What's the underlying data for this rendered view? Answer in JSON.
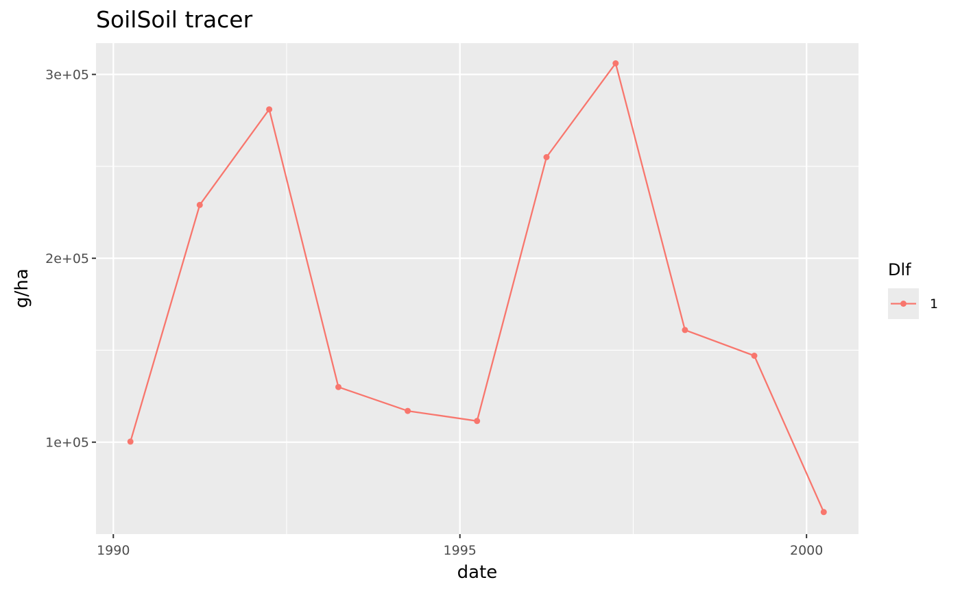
{
  "chart_data": {
    "type": "line",
    "title": "SoilSoil tracer",
    "xlabel": "date",
    "ylabel": "g/ha",
    "x_tick_labels": [
      "1990",
      "1995",
      "2000"
    ],
    "y_tick_labels": [
      "1e+05",
      "2e+05",
      "3e+05"
    ],
    "xlim": [
      1989.75,
      2000.75
    ],
    "ylim": [
      50000,
      317000
    ],
    "x_ticks": [
      1990,
      1995,
      2000
    ],
    "y_ticks": [
      100000,
      200000,
      300000
    ],
    "grid": true,
    "legend": {
      "title": "Dlf",
      "position": "right",
      "entries": [
        "1"
      ]
    },
    "series": [
      {
        "name": "1",
        "color": "#F8766D",
        "x": [
          "1990-04-01",
          "1991-04-01",
          "1992-04-01",
          "1993-04-01",
          "1994-04-01",
          "1995-04-01",
          "1996-04-01",
          "1997-04-01",
          "1998-04-01",
          "1999-04-01",
          "2000-04-01"
        ],
        "y": [
          100300,
          229000,
          281000,
          130000,
          117000,
          111500,
          255000,
          306000,
          161000,
          147000,
          62000
        ]
      }
    ]
  }
}
